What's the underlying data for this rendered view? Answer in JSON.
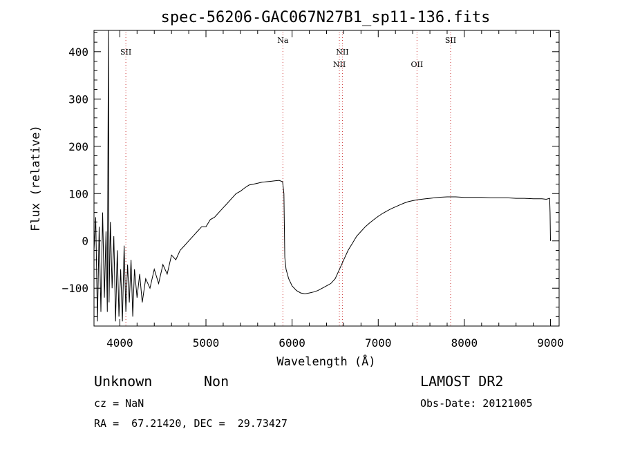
{
  "chart_data": {
    "type": "line",
    "title": "spec-56206-GAC067N27B1_sp11-136.fits",
    "xlabel": "Wavelength (Å)",
    "ylabel": "Flux (relative)",
    "xlim": [
      3700,
      9100
    ],
    "ylim": [
      -180,
      445
    ],
    "xticks": [
      4000,
      5000,
      6000,
      7000,
      8000,
      9000
    ],
    "yticks": [
      -100,
      0,
      100,
      200,
      300,
      400
    ],
    "xtick_labels": [
      "4000",
      "5000",
      "6000",
      "7000",
      "8000",
      "9000"
    ],
    "ytick_labels": [
      "−100",
      "0",
      "100",
      "200",
      "300",
      "400"
    ],
    "grid": false,
    "line_color": "#000000",
    "line_marker_color": "#cc3333",
    "lines": [
      {
        "label": "SII",
        "wavelength": 4070,
        "label_row": "upper"
      },
      {
        "label": "Na",
        "wavelength": 5893,
        "label_row": "top"
      },
      {
        "label": "NII",
        "wavelength": 6549,
        "label_row": "lower"
      },
      {
        "label": "NII",
        "wavelength": 6584,
        "label_row": "upper"
      },
      {
        "label": "OII",
        "wavelength": 7450,
        "label_row": "lower"
      },
      {
        "label": "SII",
        "wavelength": 7840,
        "label_row": "top"
      }
    ],
    "series": [
      {
        "values": [
          [
            3700,
            -20
          ],
          [
            3720,
            50
          ],
          [
            3740,
            -170
          ],
          [
            3760,
            30
          ],
          [
            3780,
            -150
          ],
          [
            3800,
            60
          ],
          [
            3820,
            -120
          ],
          [
            3840,
            20
          ],
          [
            3855,
            -150
          ],
          [
            3868,
            450
          ],
          [
            3875,
            -130
          ],
          [
            3890,
            40
          ],
          [
            3910,
            -100
          ],
          [
            3930,
            10
          ],
          [
            3950,
            -170
          ],
          [
            3970,
            -20
          ],
          [
            3990,
            -160
          ],
          [
            4010,
            -60
          ],
          [
            4030,
            -170
          ],
          [
            4050,
            -10
          ],
          [
            4070,
            -150
          ],
          [
            4090,
            -50
          ],
          [
            4110,
            -130
          ],
          [
            4130,
            -40
          ],
          [
            4150,
            -160
          ],
          [
            4170,
            -60
          ],
          [
            4200,
            -120
          ],
          [
            4230,
            -70
          ],
          [
            4260,
            -130
          ],
          [
            4300,
            -80
          ],
          [
            4350,
            -100
          ],
          [
            4400,
            -60
          ],
          [
            4450,
            -90
          ],
          [
            4500,
            -50
          ],
          [
            4550,
            -70
          ],
          [
            4600,
            -30
          ],
          [
            4650,
            -40
          ],
          [
            4700,
            -20
          ],
          [
            4750,
            -10
          ],
          [
            4800,
            0
          ],
          [
            4850,
            10
          ],
          [
            4900,
            20
          ],
          [
            4950,
            30
          ],
          [
            5000,
            30
          ],
          [
            5050,
            45
          ],
          [
            5100,
            50
          ],
          [
            5150,
            60
          ],
          [
            5200,
            70
          ],
          [
            5250,
            80
          ],
          [
            5300,
            90
          ],
          [
            5350,
            100
          ],
          [
            5400,
            105
          ],
          [
            5450,
            112
          ],
          [
            5500,
            118
          ],
          [
            5550,
            120
          ],
          [
            5600,
            122
          ],
          [
            5650,
            124
          ],
          [
            5700,
            125
          ],
          [
            5750,
            126
          ],
          [
            5800,
            127
          ],
          [
            5850,
            128
          ],
          [
            5890,
            125
          ],
          [
            5905,
            100
          ],
          [
            5915,
            -35
          ],
          [
            5930,
            -60
          ],
          [
            5960,
            -80
          ],
          [
            6000,
            -95
          ],
          [
            6050,
            -105
          ],
          [
            6100,
            -110
          ],
          [
            6150,
            -112
          ],
          [
            6200,
            -110
          ],
          [
            6250,
            -108
          ],
          [
            6300,
            -105
          ],
          [
            6350,
            -100
          ],
          [
            6400,
            -95
          ],
          [
            6450,
            -90
          ],
          [
            6500,
            -80
          ],
          [
            6550,
            -60
          ],
          [
            6600,
            -40
          ],
          [
            6650,
            -20
          ],
          [
            6700,
            -5
          ],
          [
            6750,
            10
          ],
          [
            6800,
            20
          ],
          [
            6850,
            30
          ],
          [
            6900,
            38
          ],
          [
            6950,
            45
          ],
          [
            7000,
            52
          ],
          [
            7050,
            58
          ],
          [
            7100,
            63
          ],
          [
            7150,
            68
          ],
          [
            7200,
            72
          ],
          [
            7250,
            76
          ],
          [
            7300,
            80
          ],
          [
            7350,
            83
          ],
          [
            7400,
            85
          ],
          [
            7450,
            87
          ],
          [
            7500,
            88
          ],
          [
            7550,
            89
          ],
          [
            7600,
            90
          ],
          [
            7650,
            91
          ],
          [
            7700,
            92
          ],
          [
            7800,
            93
          ],
          [
            7900,
            93
          ],
          [
            8000,
            92
          ],
          [
            8100,
            92
          ],
          [
            8200,
            92
          ],
          [
            8300,
            91
          ],
          [
            8400,
            91
          ],
          [
            8500,
            91
          ],
          [
            8600,
            90
          ],
          [
            8700,
            90
          ],
          [
            8800,
            89
          ],
          [
            8900,
            89
          ],
          [
            8950,
            88
          ],
          [
            8990,
            90
          ],
          [
            8995,
            60
          ],
          [
            9000,
            0
          ]
        ]
      }
    ]
  },
  "info": {
    "object_class": "Unknown",
    "subclass": "Non",
    "survey": "LAMOST DR2",
    "redshift": "cz = NaN",
    "obs_date": "Obs-Date: 20121005",
    "coords": "RA =  67.21420, DEC =  29.73427"
  }
}
